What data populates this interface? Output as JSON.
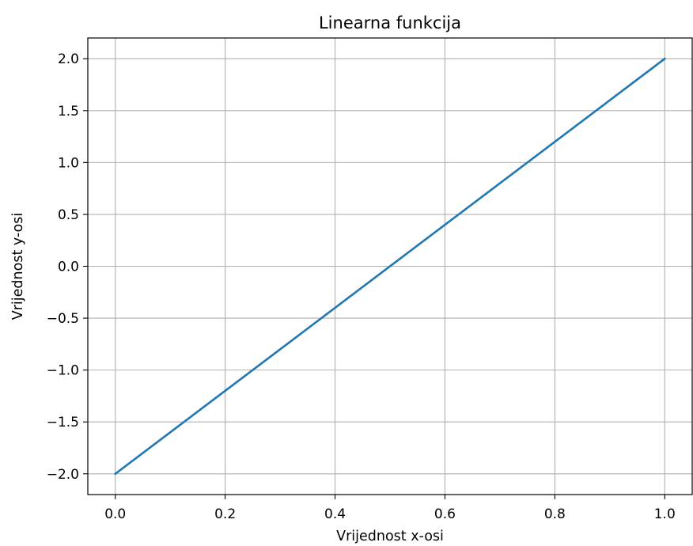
{
  "chart_data": {
    "type": "line",
    "title": "Linearna funkcija",
    "xlabel": "Vrijednost x-osi",
    "ylabel": "Vrijednost y-osi",
    "xlim": [
      -0.05,
      1.05
    ],
    "ylim": [
      -2.2,
      2.2
    ],
    "grid": true,
    "x_ticks": [
      0.0,
      0.2,
      0.4,
      0.6,
      0.8,
      1.0
    ],
    "x_tick_labels": [
      "0.0",
      "0.2",
      "0.4",
      "0.6",
      "0.8",
      "1.0"
    ],
    "y_ticks": [
      2.0,
      1.5,
      1.0,
      0.5,
      0.0,
      -0.5,
      -1.0,
      -1.5,
      -2.0
    ],
    "y_tick_labels": [
      "2.0",
      "1.5",
      "1.0",
      "0.5",
      "0.0",
      "−0.5",
      "−1.0",
      "−1.5",
      "−2.0"
    ],
    "series": [
      {
        "x": [
          0.0,
          1.0
        ],
        "y": [
          -2.0,
          2.0
        ],
        "color": "#1f77b4"
      }
    ]
  }
}
